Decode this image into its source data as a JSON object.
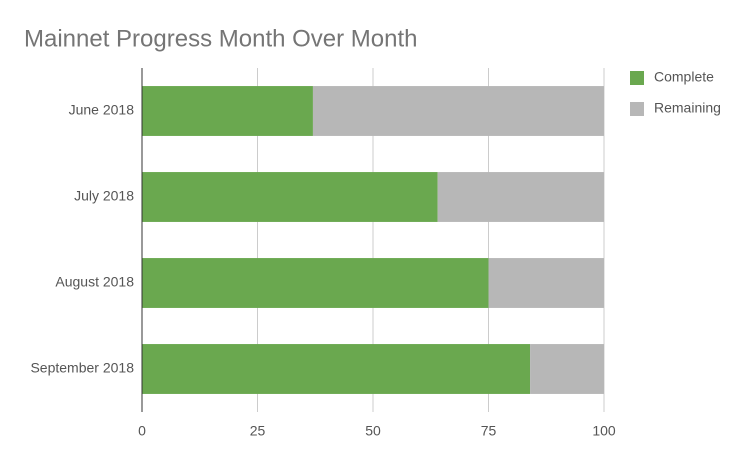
{
  "chart_data": {
    "type": "bar",
    "orientation": "horizontal",
    "stacked": true,
    "title": "Mainnet Progress Month Over Month",
    "categories": [
      "June 2018",
      "July 2018",
      "August 2018",
      "September 2018"
    ],
    "series": [
      {
        "name": "Complete",
        "color": "#6aa84f",
        "values": [
          37,
          64,
          75,
          84
        ]
      },
      {
        "name": "Remaining",
        "color": "#b7b7b7",
        "values": [
          63,
          36,
          25,
          16
        ]
      }
    ],
    "xlim": [
      0,
      100
    ],
    "xticks": [
      0,
      25,
      50,
      75,
      100
    ],
    "grid": true,
    "legend": "top-right"
  }
}
